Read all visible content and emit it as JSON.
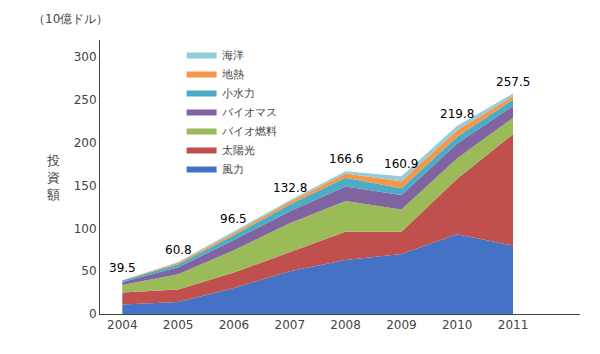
{
  "chart_data": {
    "type": "area",
    "stacked": true,
    "x": [
      2004,
      2005,
      2006,
      2007,
      2008,
      2009,
      2010,
      2011
    ],
    "xlim": [
      2003.6,
      2012.2
    ],
    "xticks": [
      2004,
      2005,
      2006,
      2007,
      2008,
      2009,
      2010,
      2011
    ],
    "ylim": [
      0,
      320
    ],
    "yticks": [
      0,
      50,
      100,
      150,
      200,
      250,
      300
    ],
    "ylabel": "投\n資\n額",
    "annotations": [
      "（10億ドル）"
    ],
    "totals": [
      39.5,
      60.8,
      96.5,
      132.8,
      166.6,
      160.9,
      219.8,
      257.5
    ],
    "legend": "upper left",
    "grid": false,
    "series": [
      {
        "name": "風力",
        "color": "#4472C4",
        "values": [
          11.0,
          14.0,
          30.5,
          50.0,
          63.0,
          70.0,
          93.0,
          80.0
        ]
      },
      {
        "name": "太陽光",
        "color": "#C0504D",
        "values": [
          14.0,
          14.5,
          18.0,
          22.0,
          33.0,
          26.0,
          65.0,
          130.0
        ]
      },
      {
        "name": "バイオ燃料",
        "color": "#9BBB59",
        "values": [
          9.0,
          18.0,
          26.0,
          34.0,
          36.0,
          26.0,
          24.0,
          19.0
        ]
      },
      {
        "name": "バイオマス",
        "color": "#8064A2",
        "values": [
          3.5,
          8.0,
          12.0,
          14.0,
          17.0,
          17.0,
          17.0,
          14.0
        ]
      },
      {
        "name": "小水力",
        "color": "#4BACC6",
        "values": [
          1.5,
          3.5,
          5.5,
          8.0,
          10.0,
          8.0,
          8.0,
          7.5
        ]
      },
      {
        "name": "地熱",
        "color": "#F79646",
        "values": [
          0.5,
          1.8,
          2.5,
          3.0,
          5.0,
          8.0,
          8.0,
          4.0
        ]
      },
      {
        "name": "海洋",
        "color": "#92CDDC",
        "values": [
          0.0,
          1.0,
          2.0,
          1.8,
          2.6,
          5.9,
          4.8,
          3.0
        ]
      }
    ]
  }
}
